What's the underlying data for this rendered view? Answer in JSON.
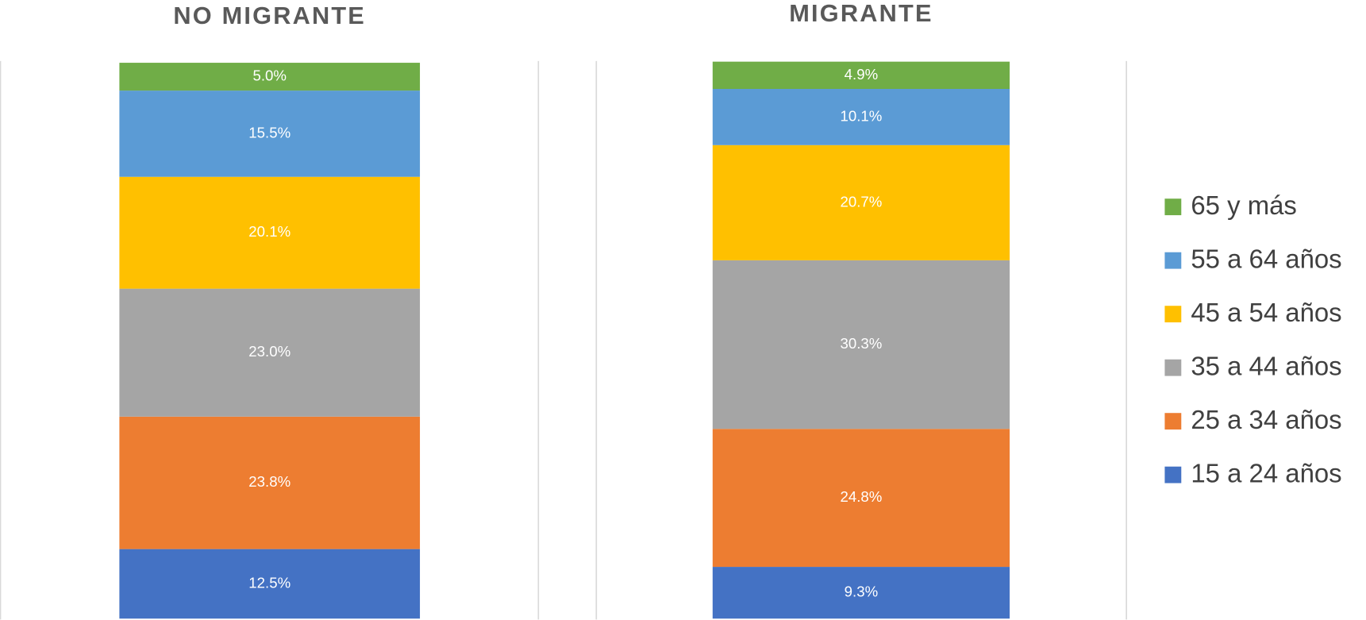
{
  "chart_data": [
    {
      "type": "bar",
      "title": "NO MIGRANTE",
      "ylim": [
        0,
        100
      ],
      "series": [
        {
          "color": "#4472c4",
          "values": [
            12.5
          ],
          "value_labels": [
            "12.5%"
          ]
        },
        {
          "color": "#ed7d31",
          "values": [
            23.8
          ],
          "value_labels": [
            "23.8%"
          ]
        },
        {
          "color": "#a5a5a5",
          "values": [
            23.0
          ],
          "value_labels": [
            "23.0%"
          ]
        },
        {
          "color": "#ffc000",
          "values": [
            20.1
          ],
          "value_labels": [
            "20.1%"
          ]
        },
        {
          "color": "#5b9bd5",
          "values": [
            15.5
          ],
          "value_labels": [
            "15.5%"
          ]
        },
        {
          "color": "#70ad47",
          "values": [
            5.0
          ],
          "value_labels": [
            "5.0%"
          ]
        }
      ]
    },
    {
      "type": "bar",
      "title": "MIGRANTE",
      "ylim": [
        0,
        100
      ],
      "series": [
        {
          "color": "#4472c4",
          "values": [
            9.3
          ],
          "value_labels": [
            "9.3%"
          ]
        },
        {
          "color": "#ed7d31",
          "values": [
            24.8
          ],
          "value_labels": [
            "24.8%"
          ]
        },
        {
          "color": "#a5a5a5",
          "values": [
            30.3
          ],
          "value_labels": [
            "30.3%"
          ]
        },
        {
          "color": "#ffc000",
          "values": [
            20.7
          ],
          "value_labels": [
            "20.7%"
          ]
        },
        {
          "color": "#5b9bd5",
          "values": [
            10.1
          ],
          "value_labels": [
            "10.1%"
          ]
        },
        {
          "color": "#70ad47",
          "values": [
            4.9
          ],
          "value_labels": [
            "4.9%"
          ]
        }
      ]
    }
  ],
  "legend": {
    "position": "right",
    "names": [
      "15 a 24 años",
      "25 a 34 años",
      "35 a 44 años",
      "45 a 54 años",
      "55 a 64 años",
      "65 y más"
    ]
  }
}
